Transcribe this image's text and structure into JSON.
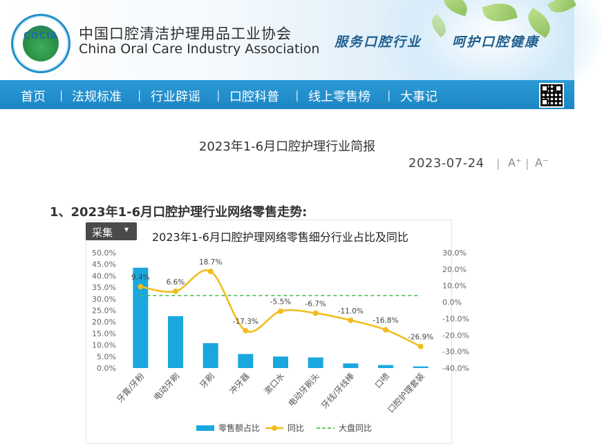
{
  "header": {
    "logo_text": "COCIA",
    "org_name_cn": "中国口腔清洁护理用品工业协会",
    "org_name_en": "China Oral Care Industry Association",
    "slogan_left": "服务口腔行业",
    "slogan_right": "呵护口腔健康"
  },
  "nav": {
    "items": [
      "首页",
      "法规标准",
      "行业辟谣",
      "口腔科普",
      "线上零售榜",
      "大事记"
    ]
  },
  "article": {
    "title": "2023年1-6月口腔护理行业简报",
    "date": "2023-07-24",
    "font_larger": "A⁺",
    "font_smaller": "A⁻",
    "section_title": "1、2023年1-6月口腔护理行业网络零售走势:"
  },
  "collect_button": {
    "label": "采集",
    "arrow": "▾"
  },
  "chart_data": {
    "type": "bar",
    "title": "2023年1-6月口腔护理网络零售细分行业占比及同比",
    "categories": [
      "牙膏/牙粉",
      "电动牙刷",
      "牙刷",
      "冲牙器",
      "漱口水",
      "电动牙刷头",
      "牙线/牙线棒",
      "口喷",
      "口腔护理套装"
    ],
    "series": [
      {
        "name": "零售额占比",
        "type": "bar",
        "axis": "left",
        "values": [
          43.5,
          22.5,
          10.8,
          6.1,
          5.0,
          4.6,
          2.0,
          1.3,
          0.7
        ]
      },
      {
        "name": "同比",
        "type": "line",
        "axis": "right",
        "values": [
          9.4,
          6.6,
          18.7,
          -17.3,
          -5.5,
          -6.7,
          -11.0,
          -16.8,
          -26.9
        ],
        "labels": [
          "9.4%",
          "6.6%",
          "18.7%",
          "-17.3%",
          "-5.5%",
          "-6.7%",
          "-11.0%",
          "-16.8%",
          "-26.9%"
        ]
      },
      {
        "name": "大盘同比",
        "type": "reference-line",
        "axis": "right",
        "value": 4.0
      }
    ],
    "y_left": {
      "ylim": [
        0,
        50
      ],
      "ticks": [
        "0.0%",
        "5.0%",
        "10.0%",
        "15.0%",
        "20.0%",
        "25.0%",
        "30.0%",
        "35.0%",
        "40.0%",
        "45.0%",
        "50.0%"
      ]
    },
    "y_right": {
      "ylim": [
        -40,
        30
      ],
      "ticks": [
        "-40.0%",
        "-30.0%",
        "-20.0%",
        "-10.0%",
        "0.0%",
        "10.0%",
        "20.0%",
        "30.0%"
      ]
    },
    "legend": {
      "placement": "bottom",
      "entries": [
        "零售额占比",
        "同比",
        "大盘同比"
      ]
    },
    "colors": {
      "bar": "#1aa7de",
      "line": "#f1bd1f",
      "reference": "#4fc04f"
    },
    "grid": false
  }
}
